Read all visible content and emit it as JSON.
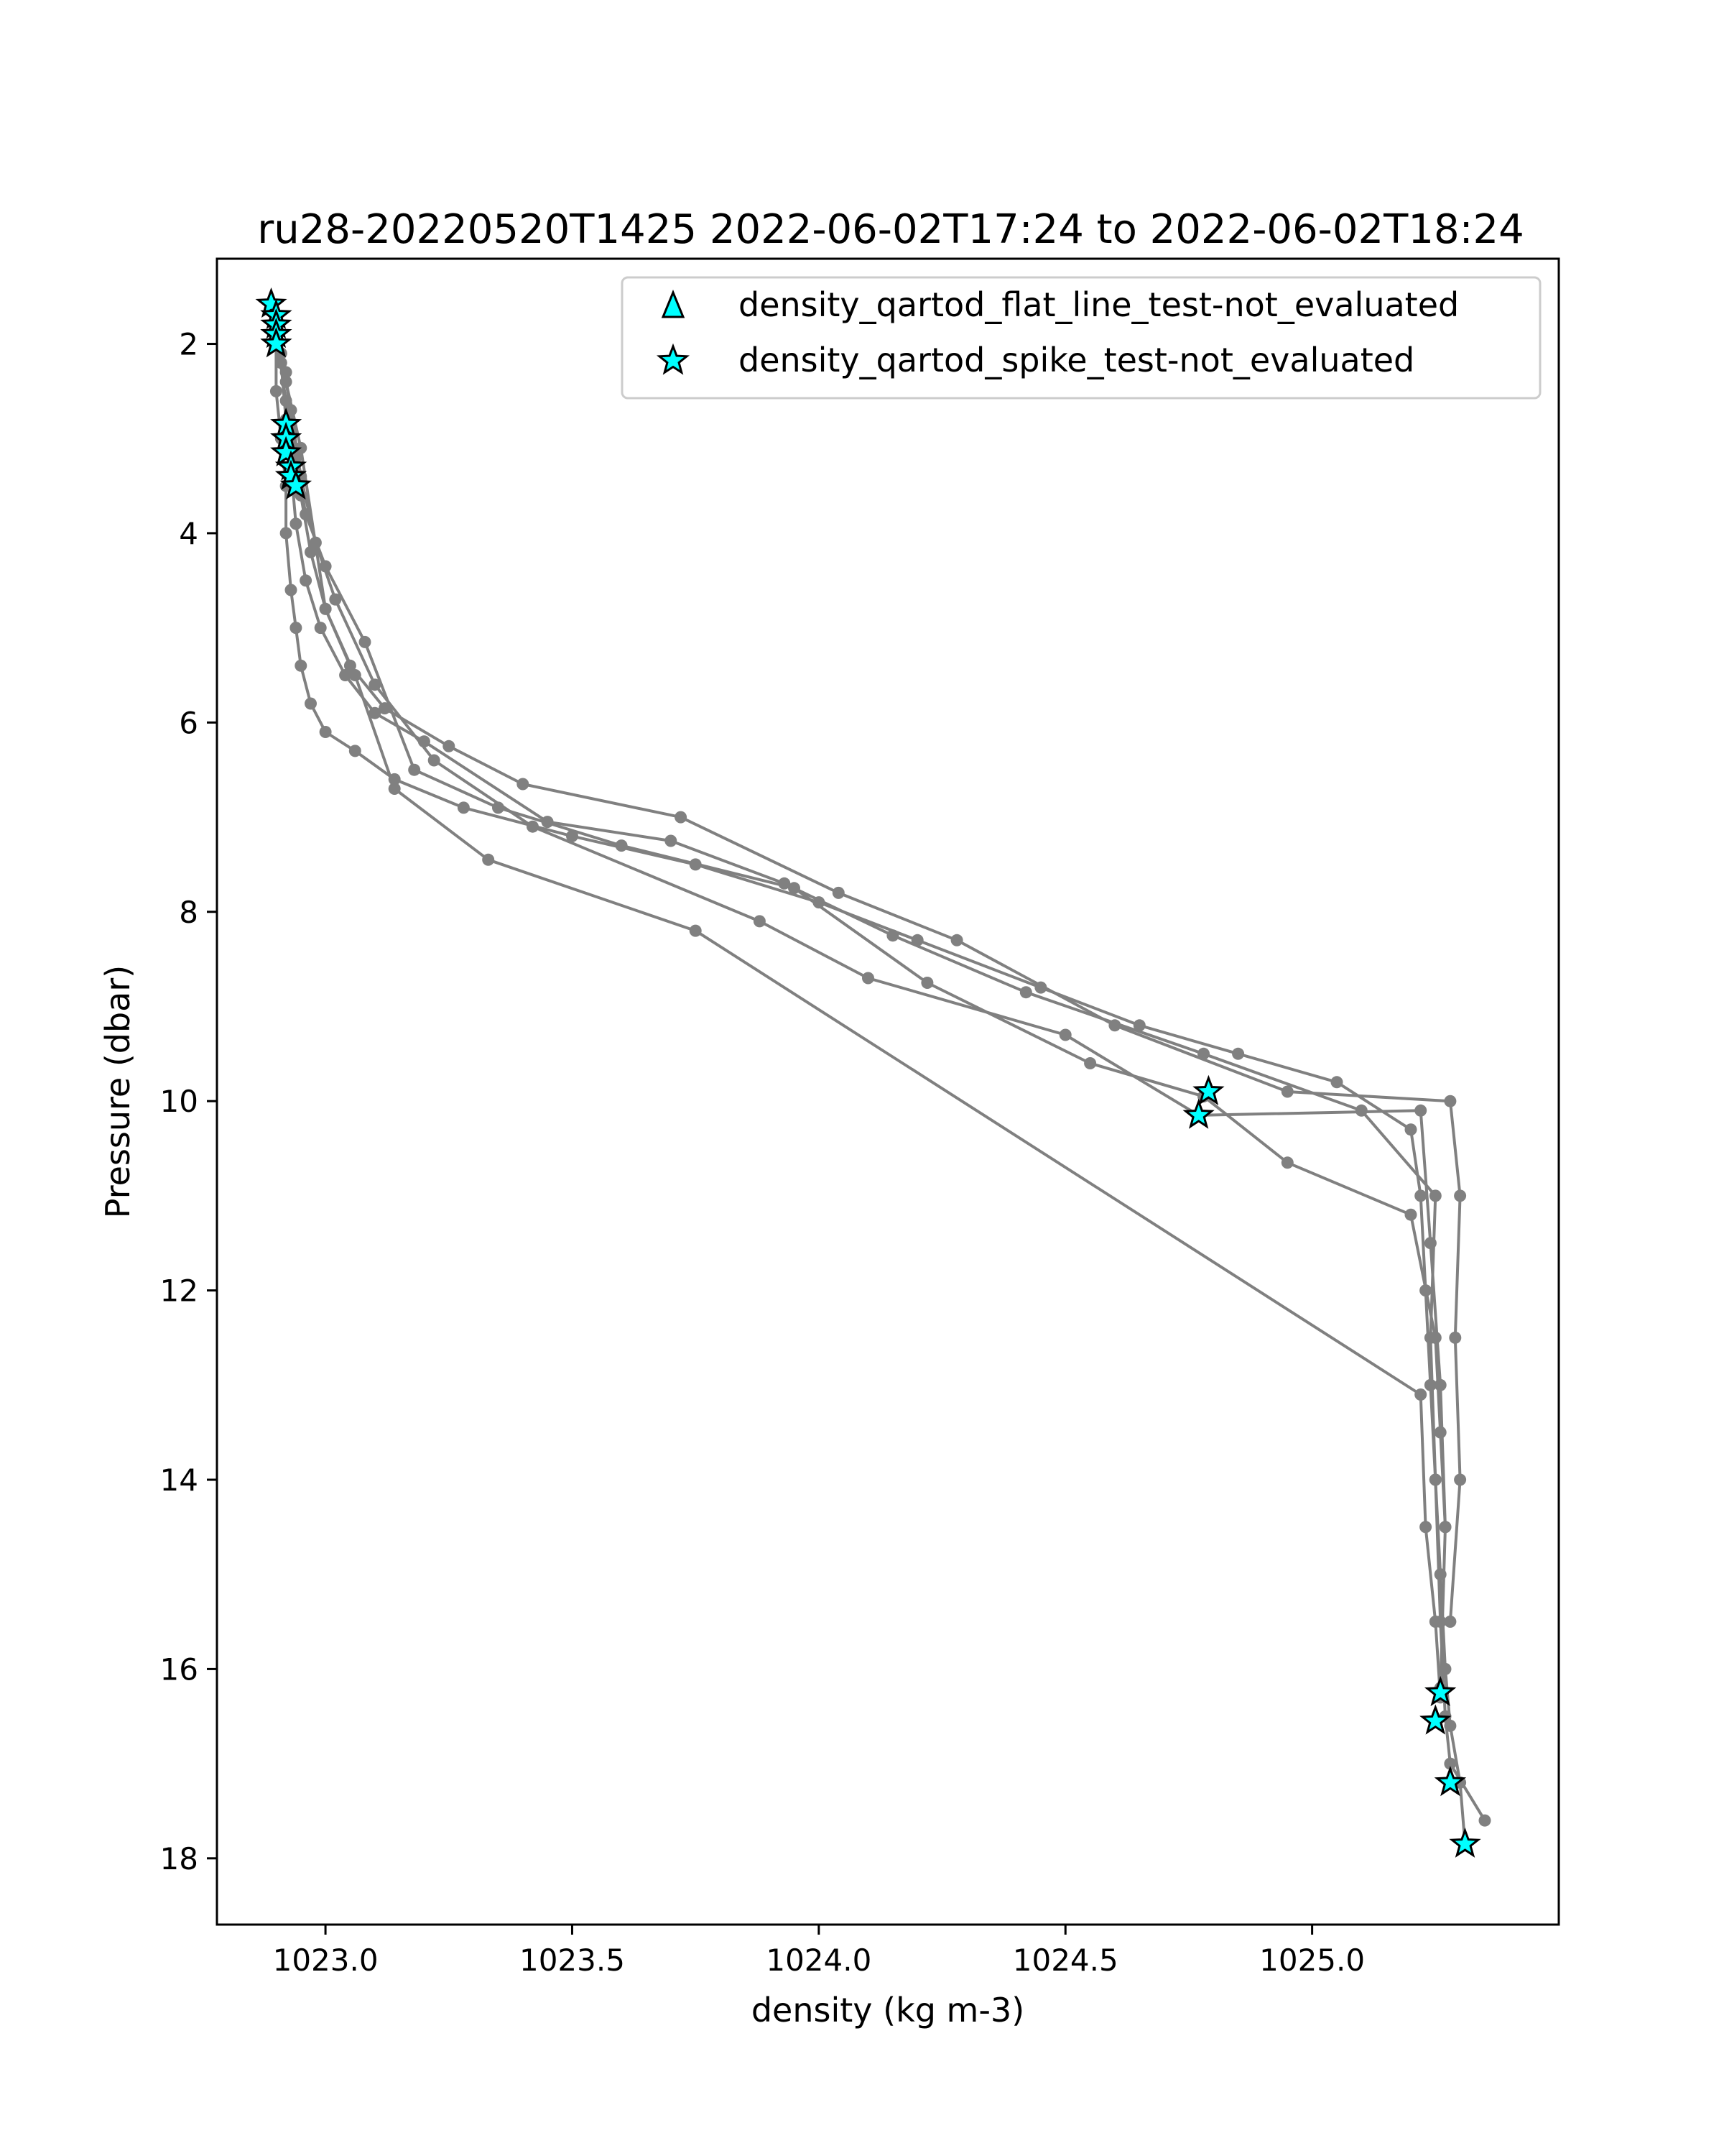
{
  "chart_data": {
    "type": "line",
    "title": "ru28-20220520T1425 2022-06-02T17:24 to 2022-06-02T18:24",
    "xlabel": "density (kg m-3)",
    "ylabel": "Pressure (dbar)",
    "xlim": [
      1022.78,
      1025.5
    ],
    "ylim": [
      18.7,
      1.1
    ],
    "y_inverted": true,
    "grid": false,
    "legend_position": "top-right",
    "xticks": [
      1023.0,
      1023.5,
      1024.0,
      1024.5,
      1025.0
    ],
    "yticks": [
      2,
      4,
      6,
      8,
      10,
      12,
      14,
      16,
      18
    ],
    "xtick_labels": [
      "1023.0",
      "1023.5",
      "1024.0",
      "1024.5",
      "1025.0"
    ],
    "ytick_labels": [
      "2",
      "4",
      "6",
      "8",
      "10",
      "12",
      "14",
      "16",
      "18"
    ],
    "profile_color": "#808080",
    "marker_color": "#00ffff",
    "legend": [
      {
        "label": "density_qartod_flat_line_test-not_evaluated",
        "marker": "triangle"
      },
      {
        "label": "density_qartod_spike_test-not_evaluated",
        "marker": "star"
      }
    ],
    "series": [
      {
        "x": [
          1022.89,
          1022.9,
          1022.9,
          1022.91,
          1022.92,
          1022.92,
          1022.93,
          1022.94,
          1022.95,
          1022.97,
          1023.0,
          1023.06,
          1023.14,
          1023.28,
          1023.5,
          1023.75,
          1024.0,
          1024.2,
          1024.45,
          1024.65,
          1024.85,
          1025.05,
          1025.2,
          1025.22,
          1025.23,
          1025.24,
          1025.25,
          1025.26,
          1025.27,
          1025.28,
          1025.3,
          1025.31
        ],
        "y": [
          1.6,
          2.0,
          2.5,
          3.0,
          3.5,
          4.0,
          4.6,
          5.0,
          5.4,
          5.8,
          6.1,
          6.3,
          6.6,
          6.9,
          7.2,
          7.5,
          7.9,
          8.3,
          8.8,
          9.2,
          9.5,
          9.8,
          10.3,
          11.0,
          12.0,
          13.0,
          14.0,
          15.0,
          16.0,
          16.6,
          17.2,
          17.85
        ]
      },
      {
        "x": [
          1022.9,
          1022.91,
          1022.92,
          1022.93,
          1022.94,
          1022.96,
          1022.99,
          1023.04,
          1023.1,
          1023.2,
          1023.45,
          1023.7,
          1023.93,
          1024.15,
          1024.42,
          1024.78,
          1025.1,
          1025.25,
          1025.24,
          1025.25,
          1025.26,
          1025.27,
          1025.28,
          1025.35
        ],
        "y": [
          1.7,
          2.2,
          2.8,
          3.3,
          3.9,
          4.5,
          5.0,
          5.5,
          5.9,
          6.2,
          7.05,
          7.25,
          7.7,
          8.25,
          8.85,
          9.5,
          10.1,
          11.0,
          12.5,
          14.0,
          15.5,
          16.5,
          17.0,
          17.6
        ]
      },
      {
        "x": [
          1022.9,
          1022.92,
          1022.93,
          1022.95,
          1022.97,
          1023.0,
          1023.05,
          1023.12,
          1023.25,
          1023.4,
          1023.72,
          1024.04,
          1024.28,
          1024.6,
          1024.95,
          1025.28,
          1025.3,
          1025.29,
          1025.3,
          1025.28
        ],
        "y": [
          1.8,
          2.3,
          2.9,
          3.6,
          4.2,
          4.8,
          5.4,
          5.85,
          6.25,
          6.65,
          7.0,
          7.8,
          8.3,
          9.2,
          9.9,
          10.0,
          11.0,
          12.5,
          14.0,
          15.5
        ]
      },
      {
        "x": [
          1022.9,
          1022.92,
          1022.94,
          1022.96,
          1023.0,
          1023.08,
          1023.18,
          1023.35,
          1023.6,
          1023.95,
          1024.22,
          1024.55,
          1024.78,
          1024.95,
          1025.2,
          1025.25,
          1025.26,
          1025.27,
          1025.26
        ],
        "y": [
          1.9,
          2.6,
          3.2,
          3.8,
          4.35,
          5.15,
          6.5,
          6.9,
          7.3,
          7.75,
          8.75,
          9.6,
          9.95,
          10.65,
          11.2,
          12.5,
          13.5,
          14.5,
          16.2
        ]
      },
      {
        "x": [
          1022.91,
          1022.93,
          1022.95,
          1022.98,
          1023.02,
          1023.1,
          1023.22,
          1023.42,
          1023.88,
          1024.1,
          1024.5,
          1024.77,
          1025.22,
          1025.24,
          1025.26,
          1025.27
        ],
        "y": [
          2.1,
          2.7,
          3.4,
          4.1,
          4.7,
          5.6,
          6.4,
          7.1,
          8.1,
          8.7,
          9.3,
          10.15,
          10.1,
          11.5,
          13.0,
          14.5
        ]
      },
      {
        "x": [
          1022.9,
          1022.92,
          1022.95,
          1023.0,
          1023.06,
          1023.14,
          1023.33,
          1023.75,
          1025.22,
          1025.23,
          1025.25,
          1025.26
        ],
        "y": [
          1.75,
          2.4,
          3.1,
          4.8,
          5.5,
          6.7,
          7.45,
          8.2,
          13.1,
          14.5,
          15.5,
          16.3
        ]
      }
    ],
    "spike_markers": [
      {
        "x": 1022.89,
        "y": 1.58
      },
      {
        "x": 1022.9,
        "y": 1.7
      },
      {
        "x": 1022.9,
        "y": 1.8
      },
      {
        "x": 1022.9,
        "y": 1.9
      },
      {
        "x": 1022.9,
        "y": 2.0
      },
      {
        "x": 1022.92,
        "y": 2.85
      },
      {
        "x": 1022.92,
        "y": 3.0
      },
      {
        "x": 1022.92,
        "y": 3.15
      },
      {
        "x": 1022.93,
        "y": 3.3
      },
      {
        "x": 1022.93,
        "y": 3.4
      },
      {
        "x": 1022.94,
        "y": 3.5
      },
      {
        "x": 1024.79,
        "y": 9.9
      },
      {
        "x": 1024.77,
        "y": 10.15
      },
      {
        "x": 1025.26,
        "y": 16.25
      },
      {
        "x": 1025.25,
        "y": 16.55
      },
      {
        "x": 1025.28,
        "y": 17.2
      },
      {
        "x": 1025.31,
        "y": 17.85
      }
    ]
  }
}
